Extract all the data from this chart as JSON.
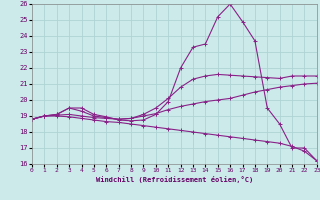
{
  "xlabel": "Windchill (Refroidissement éolien,°C)",
  "xlim": [
    0,
    23
  ],
  "ylim": [
    16,
    26
  ],
  "xticks": [
    0,
    1,
    2,
    3,
    4,
    5,
    6,
    7,
    8,
    9,
    10,
    11,
    12,
    13,
    14,
    15,
    16,
    17,
    18,
    19,
    20,
    21,
    22,
    23
  ],
  "yticks": [
    16,
    17,
    18,
    19,
    20,
    21,
    22,
    23,
    24,
    25,
    26
  ],
  "background_color": "#cdeaea",
  "grid_color": "#afd4d4",
  "line_color": "#882288",
  "lines": [
    {
      "x": [
        0,
        1,
        2,
        3,
        4,
        5,
        6,
        7,
        8,
        9,
        10,
        11,
        12,
        13,
        14,
        15,
        16,
        17,
        18,
        19,
        20,
        21,
        22,
        23
      ],
      "y": [
        18.8,
        19.0,
        19.1,
        19.5,
        19.5,
        19.1,
        18.95,
        18.75,
        18.7,
        18.75,
        19.1,
        19.9,
        22.0,
        23.3,
        23.5,
        25.2,
        26.0,
        24.9,
        23.7,
        19.5,
        18.5,
        17.0,
        17.0,
        16.2
      ]
    },
    {
      "x": [
        0,
        1,
        2,
        3,
        4,
        5,
        6,
        7,
        8,
        9,
        10,
        11,
        12,
        13,
        14,
        15,
        16,
        17,
        18,
        19,
        20,
        21,
        22,
        23
      ],
      "y": [
        18.8,
        19.0,
        19.1,
        19.5,
        19.3,
        19.0,
        18.9,
        18.8,
        18.85,
        19.1,
        19.5,
        20.1,
        20.8,
        21.3,
        21.5,
        21.6,
        21.55,
        21.5,
        21.45,
        21.4,
        21.35,
        21.5,
        21.5,
        21.5
      ]
    },
    {
      "x": [
        0,
        1,
        2,
        3,
        4,
        5,
        6,
        7,
        8,
        9,
        10,
        11,
        12,
        13,
        14,
        15,
        16,
        17,
        18,
        19,
        20,
        21,
        22,
        23
      ],
      "y": [
        18.8,
        19.0,
        19.05,
        19.1,
        19.0,
        18.9,
        18.85,
        18.8,
        18.85,
        19.0,
        19.15,
        19.4,
        19.6,
        19.75,
        19.9,
        20.0,
        20.1,
        20.3,
        20.5,
        20.65,
        20.8,
        20.9,
        21.0,
        21.05
      ]
    },
    {
      "x": [
        0,
        1,
        2,
        3,
        4,
        5,
        6,
        7,
        8,
        9,
        10,
        11,
        12,
        13,
        14,
        15,
        16,
        17,
        18,
        19,
        20,
        21,
        22,
        23
      ],
      "y": [
        18.8,
        19.0,
        19.0,
        18.95,
        18.85,
        18.75,
        18.65,
        18.6,
        18.5,
        18.4,
        18.3,
        18.2,
        18.1,
        18.0,
        17.9,
        17.8,
        17.7,
        17.6,
        17.5,
        17.4,
        17.3,
        17.1,
        16.8,
        16.2
      ]
    }
  ]
}
